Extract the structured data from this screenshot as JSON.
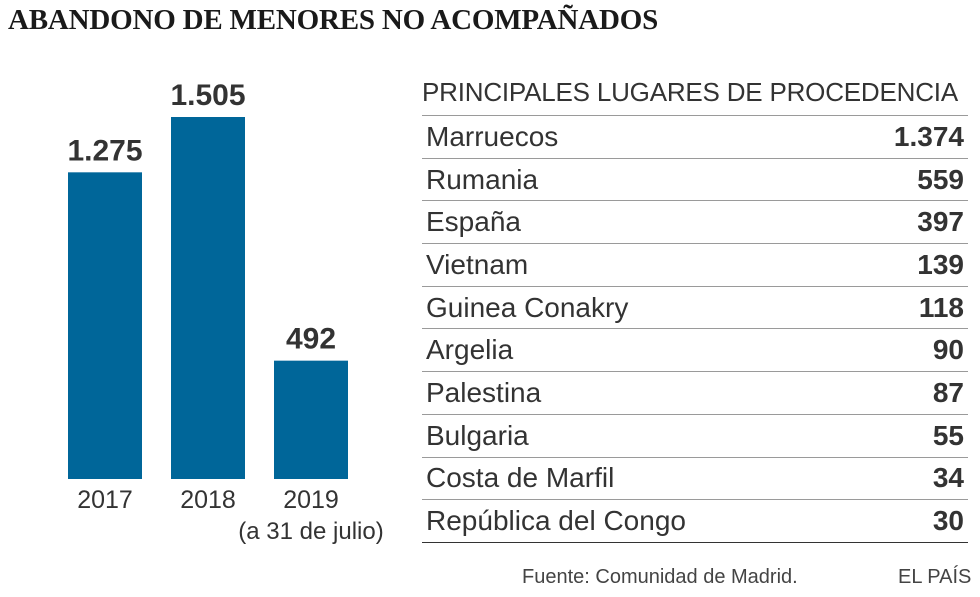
{
  "title": "ABANDONO DE MENORES NO ACOMPAÑADOS",
  "chart_data": [
    {
      "type": "bar",
      "title": "",
      "categories": [
        "2017",
        "2018",
        "2019"
      ],
      "category_notes": [
        "",
        "",
        "(a 31 de julio)"
      ],
      "values": [
        1275,
        1505,
        492
      ],
      "value_labels": [
        "1.275",
        "1.505",
        "492"
      ],
      "ylim": [
        0,
        1505
      ],
      "bar_color": "#006699",
      "grid": false
    },
    {
      "type": "table",
      "title": "PRINCIPALES LUGARES DE PROCEDENCIA",
      "categories": [
        "Marruecos",
        "Rumania",
        "España",
        "Vietnam",
        "Guinea Conakry",
        "Argelia",
        "Palestina",
        "Bulgaria",
        "Costa de Marfil",
        "República del Congo"
      ],
      "values": [
        1374,
        559,
        397,
        139,
        118,
        90,
        87,
        55,
        34,
        30
      ],
      "value_labels": [
        "1.374",
        "559",
        "397",
        "139",
        "118",
        "90",
        "87",
        "55",
        "34",
        "30"
      ]
    }
  ],
  "footer": {
    "source": "Fuente: Comunidad de Madrid.",
    "brand": "EL PAÍS"
  }
}
